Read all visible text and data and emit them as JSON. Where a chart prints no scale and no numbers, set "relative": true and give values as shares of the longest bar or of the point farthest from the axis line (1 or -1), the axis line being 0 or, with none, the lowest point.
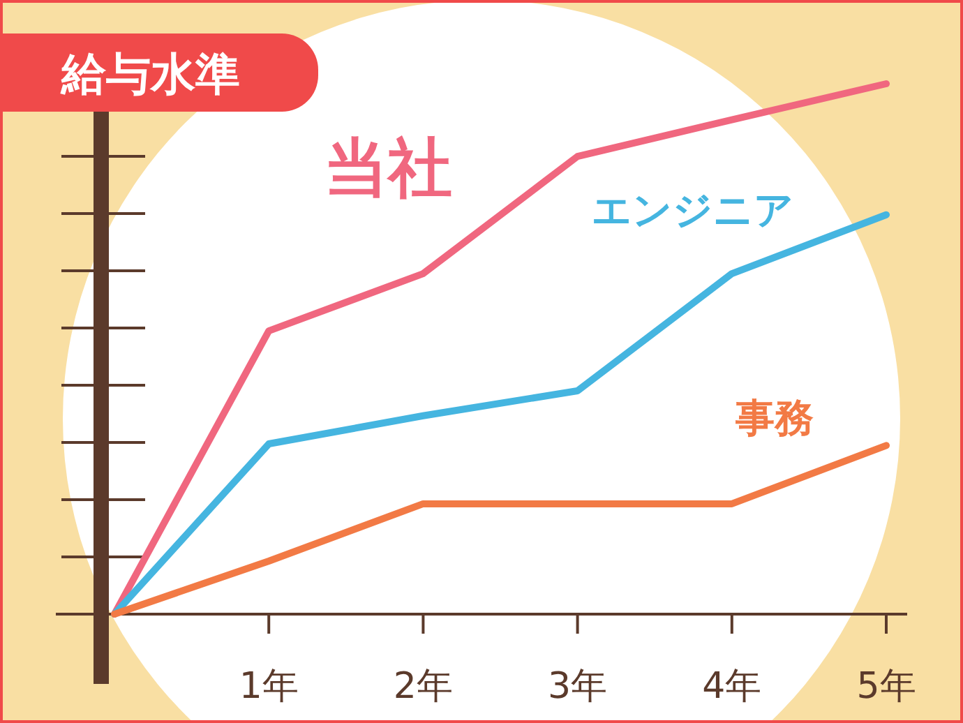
{
  "chart_data": {
    "type": "line",
    "title": "給与水準",
    "relative": true,
    "categories": [
      null,
      "1年",
      "2年",
      "3年",
      "4年",
      "5年"
    ],
    "series": [
      {
        "name": "当社",
        "color": "#f0677f",
        "values": [
          0,
          0.534,
          0.642,
          0.863,
          0.932,
          1
        ]
      },
      {
        "name": "エンジニア",
        "color": "#45b5e0",
        "values": [
          0,
          0.321,
          0.374,
          0.421,
          0.642,
          0.753
        ]
      },
      {
        "name": "事務",
        "color": "#f27a45",
        "values": [
          0,
          0.1,
          0.208,
          0.208,
          0.208,
          0.318
        ]
      }
    ],
    "legend": false,
    "grid": false,
    "marker": "none",
    "line_style": "solid"
  }
}
